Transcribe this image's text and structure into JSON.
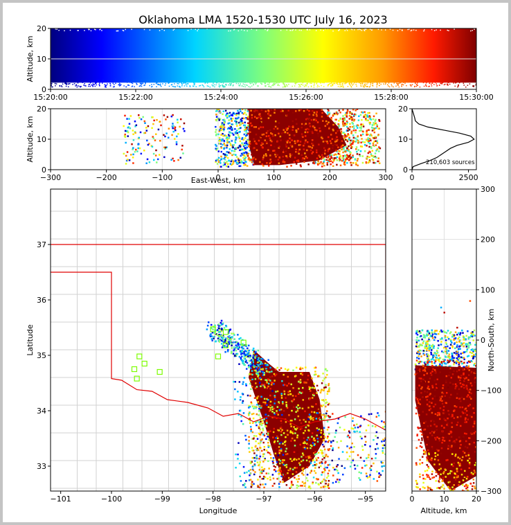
{
  "title": "Oklahoma LMA 1520-1530 UTC July 16, 2023",
  "chart_data": [
    {
      "name": "time-altitude",
      "type": "scatter",
      "ylabel": "Altitude, km",
      "ylim": [
        0,
        20
      ],
      "yticks": [
        "0",
        "10",
        "20"
      ],
      "xticks": [
        "15:20:00",
        "15:22:00",
        "15:24:00",
        "15:26:00",
        "15:28:00",
        "15:30:00"
      ],
      "color_scale": "time, blue (15:20) to dark red (15:30)"
    },
    {
      "name": "east-west-altitude",
      "type": "scatter",
      "xlabel": "East-West, km",
      "ylabel": "Altitude, km",
      "xlim": [
        -300,
        300
      ],
      "ylim": [
        0,
        20
      ],
      "xticks": [
        "−300",
        "−200",
        "−100",
        "0",
        "100",
        "200",
        "300"
      ],
      "yticks": [
        "0",
        "10",
        "20"
      ]
    },
    {
      "name": "altitude-histogram",
      "type": "line",
      "xlim": [
        0,
        2850
      ],
      "ylim": [
        0,
        20
      ],
      "xticks": [
        "0",
        "2500"
      ],
      "yticks": [
        "0",
        "10",
        "20"
      ],
      "annotation": "210,603 sources",
      "profile": [
        [
          0,
          0
        ],
        [
          50,
          1
        ],
        [
          400,
          2
        ],
        [
          800,
          3
        ],
        [
          1100,
          4
        ],
        [
          1300,
          5
        ],
        [
          1500,
          6
        ],
        [
          1700,
          7
        ],
        [
          2000,
          8
        ],
        [
          2500,
          9
        ],
        [
          2750,
          10
        ],
        [
          2600,
          11
        ],
        [
          2100,
          12
        ],
        [
          1400,
          13
        ],
        [
          700,
          14
        ],
        [
          300,
          15
        ],
        [
          150,
          16
        ],
        [
          120,
          17
        ],
        [
          80,
          18
        ],
        [
          40,
          19
        ],
        [
          0,
          20
        ]
      ]
    },
    {
      "name": "plan-view-map",
      "type": "scatter",
      "xlabel": "Longitude",
      "ylabel": "Latitude",
      "xlim": [
        -101.2,
        -94.6
      ],
      "ylim": [
        32.55,
        38
      ],
      "xticks": [
        "−101",
        "−100",
        "−99",
        "−98",
        "−97",
        "−96",
        "−95"
      ],
      "yticks": [
        "33",
        "34",
        "35",
        "36",
        "37"
      ],
      "station_markers": "green open squares"
    },
    {
      "name": "altitude-north-south",
      "type": "scatter",
      "xlabel": "Altitude, km",
      "ylabel": "North-South, km",
      "xlim": [
        0,
        20
      ],
      "ylim": [
        -300,
        300
      ],
      "xticks": [
        "0",
        "10",
        "20"
      ],
      "yticks": [
        "−300",
        "−200",
        "−100",
        "0",
        "100",
        "200",
        "300"
      ]
    }
  ]
}
